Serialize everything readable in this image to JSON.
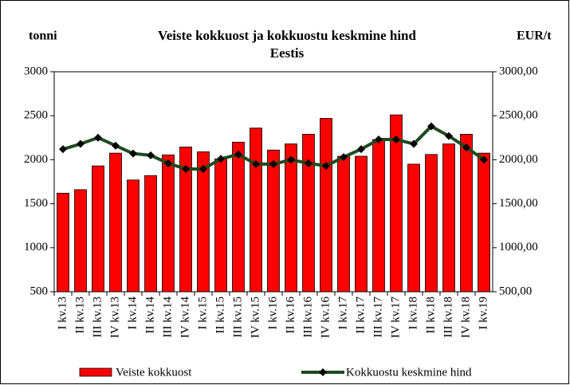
{
  "chart_data": {
    "type": "bar_line",
    "title": "Veiste kokkuost ja kokkuostu keskmine hind Eestis",
    "ylabel": "tonni",
    "y2label": "EUR/t",
    "categories": [
      "I kv.13",
      "II kv.13",
      "III kv.13",
      "IV kv.13",
      "I kv.14",
      "II kv.14",
      "III kv.14",
      "IV kv.14",
      "I kv.15",
      "II kv.15",
      "III kv.15",
      "IV kv.15",
      "I kv.16",
      "II kv.16",
      "III kv.16",
      "IV kv.16",
      "I kv.17",
      "II kv.17",
      "III kv.17",
      "IV kv.17",
      "I kv.18",
      "II kv.18",
      "III kv.18",
      "IV kv.18",
      "I kv.19"
    ],
    "series": [
      {
        "name": "Veiste kokkuost",
        "color": "#ff0000",
        "values": [
          1620,
          1660,
          1930,
          2075,
          1770,
          1820,
          2055,
          2145,
          2090,
          2010,
          2200,
          2360,
          2110,
          2180,
          2290,
          2470,
          2040,
          2040,
          2230,
          2510,
          1950,
          2060,
          2180,
          2290,
          2075
        ]
      },
      {
        "name": "Kokkuostu keskmine hind",
        "color": "#1f4a1f",
        "axis": "y2",
        "values": [
          2120,
          2180,
          2250,
          2160,
          2070,
          2050,
          1960,
          1895,
          1895,
          2010,
          2060,
          1950,
          1950,
          2000,
          1960,
          1930,
          2030,
          2120,
          2230,
          2230,
          2180,
          2380,
          2270,
          2140,
          2000
        ]
      }
    ],
    "ylim": [
      500,
      3000
    ],
    "yticks": [
      500,
      1000,
      1500,
      2000,
      2500,
      3000
    ],
    "y2lim": [
      500,
      3000
    ],
    "y2ticks": [
      {
        "value": 500,
        "label": "500,00"
      },
      {
        "value": 1000,
        "label": "1000,00"
      },
      {
        "value": 1500,
        "label": "1500,00"
      },
      {
        "value": 2000,
        "label": "2000,00"
      },
      {
        "value": 2500,
        "label": "2500,00"
      },
      {
        "value": 3000,
        "label": "3000,00"
      }
    ]
  }
}
